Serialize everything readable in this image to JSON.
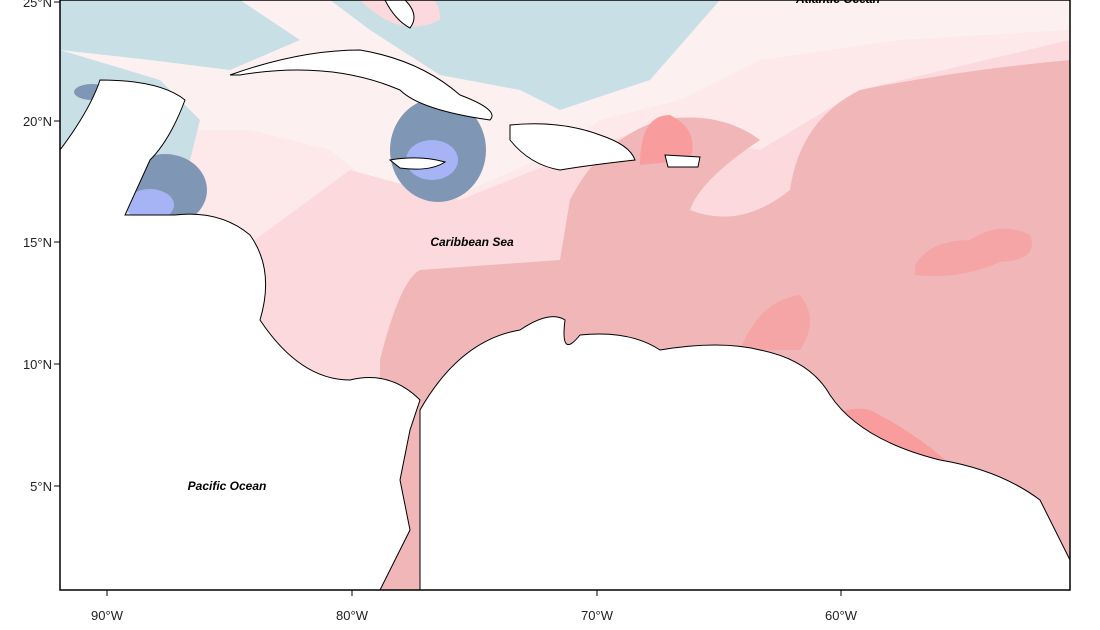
{
  "map": {
    "lat_ticks": [
      "25°N",
      "20°N",
      "15°N",
      "10°N",
      "5°N"
    ],
    "lon_ticks": [
      "90°W",
      "80°W",
      "70°W",
      "60°W"
    ],
    "labels": [
      "Atlantic Ocean",
      "Caribbean Sea",
      "Pacific Ocean"
    ]
  }
}
